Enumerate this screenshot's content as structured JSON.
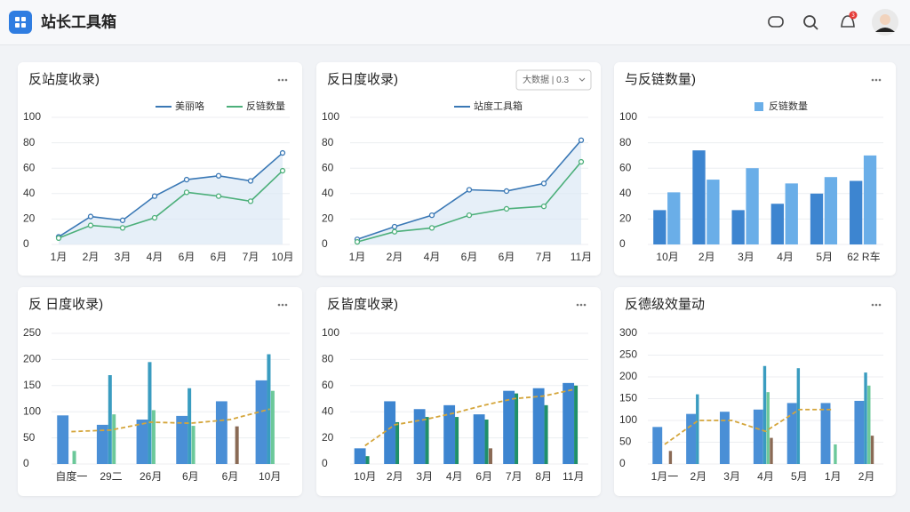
{
  "header": {
    "title": "站长工具箱",
    "badge": "3"
  },
  "chart_data": [
    {
      "type": "line",
      "title": "反站度收录)",
      "categories": [
        "1月",
        "2月",
        "3月",
        "4月",
        "6月",
        "6月",
        "7月",
        "10月"
      ],
      "series": [
        {
          "name": "美丽咯",
          "color": "#3a78b5",
          "values": [
            6,
            22,
            19,
            38,
            51,
            54,
            50,
            72
          ]
        },
        {
          "name": "反链数量",
          "color": "#4caf7a",
          "values": [
            5,
            15,
            13,
            21,
            41,
            38,
            34,
            58
          ]
        }
      ],
      "ylim": [
        0,
        100
      ],
      "yticks": [
        0,
        20,
        40,
        60,
        80,
        100
      ]
    },
    {
      "type": "line",
      "title": "反日度收录)",
      "dropdown": "大数据 | 0.3",
      "categories": [
        "1月",
        "2月",
        "4月",
        "6月",
        "6月",
        "7月",
        "11月"
      ],
      "series": [
        {
          "name": "站度工具箱",
          "color": "#3a78b5",
          "values": [
            4,
            14,
            23,
            43,
            42,
            48,
            82
          ]
        },
        {
          "color": "#4caf7a",
          "values": [
            2,
            10,
            13,
            23,
            28,
            30,
            65
          ]
        }
      ],
      "ylim": [
        0,
        100
      ],
      "yticks": [
        0,
        20,
        40,
        60,
        80,
        100
      ]
    },
    {
      "type": "bar",
      "title": "与反链数量)",
      "categories": [
        "10月",
        "2月",
        "3月",
        "4月",
        "5月",
        "62 R车"
      ],
      "series": [
        {
          "color": "#3d85d0",
          "values": [
            27,
            74,
            27,
            32,
            40,
            50
          ]
        },
        {
          "name": "反链数量",
          "color": "#6aaee8",
          "values": [
            41,
            51,
            60,
            48,
            53,
            70
          ]
        }
      ],
      "ylim": [
        0,
        100
      ],
      "yticks": [
        0,
        20,
        40,
        60,
        80,
        100
      ]
    },
    {
      "type": "bar",
      "title": "反 日度收录)",
      "categories": [
        "自度一",
        "29二",
        "26月",
        "6月",
        "6月",
        "10月"
      ],
      "series": [
        {
          "color": "#4a8fd6",
          "values": [
            93,
            75,
            85,
            92,
            120,
            160
          ]
        },
        {
          "color": "#3a9cc0",
          "values": [
            null,
            170,
            195,
            145,
            null,
            210
          ]
        },
        {
          "color": "#6cc89a",
          "values": [
            25,
            95,
            103,
            73,
            null,
            140
          ]
        },
        {
          "color": "#8a6a55",
          "values": [
            null,
            null,
            null,
            null,
            72,
            null
          ]
        },
        {
          "type": "line",
          "dashed": true,
          "color": "#d4a53a",
          "values": [
            62,
            65,
            80,
            78,
            85,
            105
          ]
        }
      ],
      "ylim": [
        0,
        250
      ],
      "yticks": [
        0,
        50,
        100,
        150,
        200,
        250
      ]
    },
    {
      "type": "bar",
      "title": "反皆度收录)",
      "categories": [
        "10月",
        "2月",
        "3月",
        "4月",
        "6月",
        "7月",
        "8月",
        "11月"
      ],
      "series": [
        {
          "color": "#3d85d0",
          "values": [
            12,
            48,
            42,
            45,
            38,
            56,
            58,
            62
          ]
        },
        {
          "color": "#1f8f6a",
          "values": [
            6,
            32,
            36,
            36,
            34,
            54,
            45,
            60
          ]
        },
        {
          "color": "#8a6a55",
          "values": [
            null,
            null,
            null,
            null,
            12,
            null,
            null,
            null
          ]
        },
        {
          "type": "line",
          "dashed": true,
          "color": "#d4a53a",
          "values": [
            14,
            30,
            34,
            39,
            45,
            50,
            52,
            57
          ]
        }
      ],
      "ylim": [
        0,
        100
      ],
      "yticks": [
        0,
        20,
        40,
        60,
        80,
        100
      ]
    },
    {
      "type": "bar",
      "title": "反德级效量动",
      "categories": [
        "1月一",
        "2月",
        "3月",
        "4月",
        "5月",
        "1月",
        "2月"
      ],
      "series": [
        {
          "color": "#4a8fd6",
          "values": [
            85,
            115,
            120,
            125,
            140,
            140,
            145
          ]
        },
        {
          "color": "#3a9cc0",
          "values": [
            null,
            160,
            null,
            225,
            220,
            null,
            210
          ]
        },
        {
          "color": "#6cc89a",
          "values": [
            null,
            null,
            null,
            165,
            null,
            45,
            180
          ]
        },
        {
          "color": "#8a6a55",
          "values": [
            30,
            null,
            null,
            60,
            null,
            null,
            65
          ]
        },
        {
          "type": "line",
          "dashed": true,
          "color": "#d4a53a",
          "values": [
            45,
            100,
            100,
            75,
            125,
            125,
            null
          ]
        }
      ],
      "ylim": [
        0,
        300
      ],
      "yticks": [
        0,
        50,
        100,
        150,
        200,
        250,
        300
      ]
    }
  ]
}
